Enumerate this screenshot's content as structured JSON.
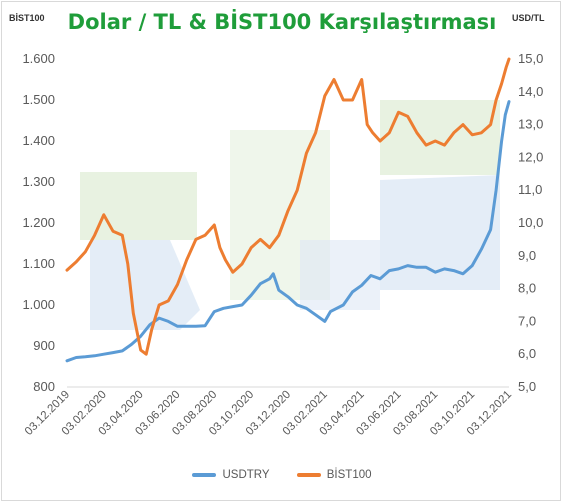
{
  "chart_data": {
    "type": "line",
    "title": "Dolar / TL & BİST100 Karşılaştırması",
    "left_axis_label": "BİST100",
    "right_axis_label": "USD/TL",
    "left_ylim": [
      800,
      1600
    ],
    "left_ticks": [
      "800",
      "900",
      "1.000",
      "1.100",
      "1.200",
      "1.300",
      "1.400",
      "1.500",
      "1.600"
    ],
    "right_ylim": [
      5.0,
      15.0
    ],
    "right_ticks": [
      "5,0",
      "6,0",
      "7,0",
      "8,0",
      "9,0",
      "10,0",
      "11,0",
      "12,0",
      "13,0",
      "14,0",
      "15,0"
    ],
    "x_tick_labels": [
      "03.12.2019",
      "03.02.2020",
      "03.04.2020",
      "03.06.2020",
      "03.08.2020",
      "03.10.2020",
      "03.12.2020",
      "03.02.2021",
      "03.04.2021",
      "03.06.2021",
      "03.08.2021",
      "03.10.2021",
      "03.12.2021"
    ],
    "x_months": [
      0,
      2,
      4,
      6,
      8,
      10,
      12,
      14,
      16,
      18,
      20,
      22,
      24
    ],
    "series": [
      {
        "name": "USDTRY",
        "axis": "right",
        "color": "#5b9bd5",
        "points": [
          [
            0,
            5.8
          ],
          [
            0.5,
            5.9
          ],
          [
            1,
            5.92
          ],
          [
            1.5,
            5.95
          ],
          [
            2,
            6.0
          ],
          [
            2.5,
            6.05
          ],
          [
            3,
            6.1
          ],
          [
            3.5,
            6.3
          ],
          [
            4,
            6.55
          ],
          [
            4.5,
            6.9
          ],
          [
            5,
            7.1
          ],
          [
            5.5,
            7.0
          ],
          [
            6,
            6.85
          ],
          [
            6.5,
            6.85
          ],
          [
            7,
            6.85
          ],
          [
            7.5,
            6.87
          ],
          [
            8,
            7.3
          ],
          [
            8.5,
            7.4
          ],
          [
            9,
            7.45
          ],
          [
            9.5,
            7.5
          ],
          [
            10,
            7.8
          ],
          [
            10.5,
            8.15
          ],
          [
            11,
            8.3
          ],
          [
            11.2,
            8.45
          ],
          [
            11.5,
            7.95
          ],
          [
            12,
            7.75
          ],
          [
            12.5,
            7.5
          ],
          [
            13,
            7.4
          ],
          [
            13.5,
            7.2
          ],
          [
            14,
            7.0
          ],
          [
            14.3,
            7.3
          ],
          [
            15,
            7.5
          ],
          [
            15.5,
            7.9
          ],
          [
            16,
            8.1
          ],
          [
            16.5,
            8.4
          ],
          [
            17,
            8.3
          ],
          [
            17.5,
            8.55
          ],
          [
            18,
            8.6
          ],
          [
            18.5,
            8.7
          ],
          [
            19,
            8.65
          ],
          [
            19.5,
            8.65
          ],
          [
            20,
            8.5
          ],
          [
            20.5,
            8.6
          ],
          [
            21,
            8.55
          ],
          [
            21.5,
            8.45
          ],
          [
            22,
            8.7
          ],
          [
            22.5,
            9.2
          ],
          [
            23,
            9.8
          ],
          [
            23.3,
            11.0
          ],
          [
            23.6,
            12.5
          ],
          [
            23.8,
            13.3
          ],
          [
            24,
            13.7
          ]
        ]
      },
      {
        "name": "BİST100",
        "axis": "left",
        "color": "#ed7d31",
        "points": [
          [
            0,
            1085
          ],
          [
            0.5,
            1105
          ],
          [
            1,
            1130
          ],
          [
            1.5,
            1170
          ],
          [
            2,
            1220
          ],
          [
            2.5,
            1180
          ],
          [
            3,
            1170
          ],
          [
            3.3,
            1100
          ],
          [
            3.6,
            980
          ],
          [
            4,
            890
          ],
          [
            4.3,
            880
          ],
          [
            4.6,
            940
          ],
          [
            5,
            1000
          ],
          [
            5.5,
            1010
          ],
          [
            6,
            1050
          ],
          [
            6.5,
            1110
          ],
          [
            7,
            1160
          ],
          [
            7.5,
            1170
          ],
          [
            8,
            1195
          ],
          [
            8.3,
            1140
          ],
          [
            8.6,
            1110
          ],
          [
            9,
            1080
          ],
          [
            9.5,
            1100
          ],
          [
            10,
            1140
          ],
          [
            10.5,
            1160
          ],
          [
            11,
            1140
          ],
          [
            11.5,
            1170
          ],
          [
            12,
            1230
          ],
          [
            12.5,
            1280
          ],
          [
            13,
            1370
          ],
          [
            13.5,
            1420
          ],
          [
            14,
            1510
          ],
          [
            14.5,
            1550
          ],
          [
            15,
            1500
          ],
          [
            15.5,
            1500
          ],
          [
            16,
            1550
          ],
          [
            16.3,
            1440
          ],
          [
            16.6,
            1420
          ],
          [
            17,
            1400
          ],
          [
            17.5,
            1420
          ],
          [
            18,
            1470
          ],
          [
            18.5,
            1460
          ],
          [
            19,
            1420
          ],
          [
            19.5,
            1390
          ],
          [
            20,
            1400
          ],
          [
            20.5,
            1390
          ],
          [
            21,
            1420
          ],
          [
            21.5,
            1440
          ],
          [
            22,
            1415
          ],
          [
            22.5,
            1420
          ],
          [
            23,
            1440
          ],
          [
            23.3,
            1500
          ],
          [
            23.6,
            1540
          ],
          [
            23.85,
            1580
          ],
          [
            24,
            1600
          ]
        ]
      }
    ],
    "grid": false,
    "legend_position": "bottom"
  }
}
